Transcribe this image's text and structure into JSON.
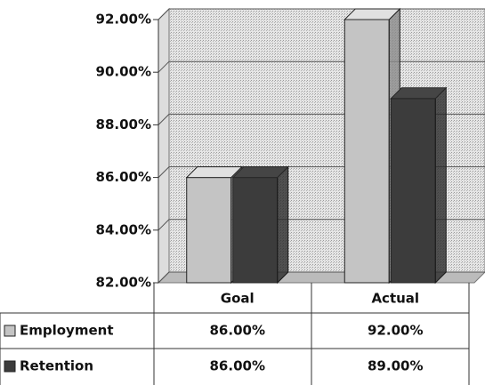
{
  "chart_data": {
    "type": "bar",
    "categories": [
      "Goal",
      "Actual"
    ],
    "series": [
      {
        "name": "Employment",
        "color": "#c4c4c4",
        "values": [
          86,
          92
        ],
        "value_labels": [
          "86.00%",
          "92.00%"
        ]
      },
      {
        "name": "Retention",
        "color": "#3c3c3c",
        "values": [
          86,
          89
        ],
        "value_labels": [
          "86.00%",
          "89.00%"
        ]
      }
    ],
    "ylim": [
      82,
      92
    ],
    "yticks": [
      {
        "value": 82,
        "label": "82.00%"
      },
      {
        "value": 84,
        "label": "84.00%"
      },
      {
        "value": 86,
        "label": "86.00%"
      },
      {
        "value": 88,
        "label": "88.00%"
      },
      {
        "value": 90,
        "label": "90.00%"
      },
      {
        "value": 92,
        "label": "92.00%"
      }
    ],
    "grid": true
  }
}
